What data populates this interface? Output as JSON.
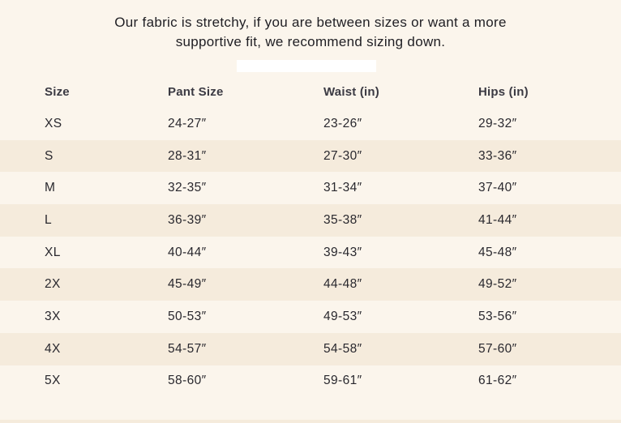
{
  "note": {
    "line1": "Our fabric is stretchy, if you are between sizes or want a more",
    "line2": "supportive fit, we recommend sizing down."
  },
  "table": {
    "columns": [
      "Size",
      "Pant Size",
      "Waist (in)",
      "Hips (in)"
    ],
    "rows": [
      {
        "size": "XS",
        "pant_size": "24-27″",
        "waist": "23-26″",
        "hips": "29-32″"
      },
      {
        "size": "S",
        "pant_size": "28-31″",
        "waist": "27-30″",
        "hips": "33-36″"
      },
      {
        "size": "M",
        "pant_size": "32-35″",
        "waist": "31-34″",
        "hips": "37-40″"
      },
      {
        "size": "L",
        "pant_size": "36-39″",
        "waist": "35-38″",
        "hips": "41-44″"
      },
      {
        "size": "XL",
        "pant_size": "40-44″",
        "waist": "39-43″",
        "hips": "45-48″"
      },
      {
        "size": "2X",
        "pant_size": "45-49″",
        "waist": "44-48″",
        "hips": "49-52″"
      },
      {
        "size": "3X",
        "pant_size": "50-53″",
        "waist": "49-53″",
        "hips": "53-56″"
      },
      {
        "size": "4X",
        "pant_size": "54-57″",
        "waist": "54-58″",
        "hips": "57-60″"
      },
      {
        "size": "5X",
        "pant_size": "58-60″",
        "waist": "59-61″",
        "hips": "61-62″"
      }
    ]
  },
  "colors": {
    "background": "#fbf5ec",
    "stripe": "#f5ebdc",
    "title": "#1f1e23",
    "text": "#29282e",
    "header": "#3b3a43",
    "bar": "#ffffff"
  }
}
